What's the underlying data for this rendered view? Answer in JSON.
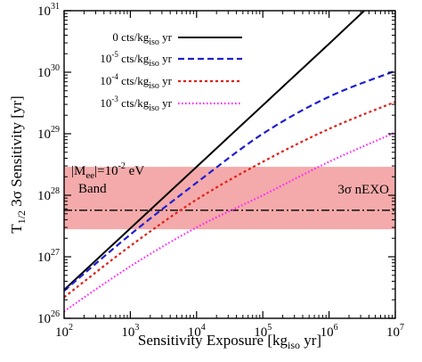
{
  "chart_data": {
    "type": "line",
    "xscale": "log",
    "yscale": "log",
    "xlim": [
      100,
      10000000
    ],
    "ylim": [
      1e+26,
      1e+31
    ],
    "xlabel": {
      "main": "Sensitivity Exposure [kg",
      "sub": "iso",
      "tail": " yr]"
    },
    "ylabel": {
      "main": "T",
      "sub": "1/2",
      "tail": " 3σ Sensitivity [yr]"
    },
    "x_ticks": [
      {
        "base": "10",
        "exp": "2",
        "value": 100
      },
      {
        "base": "10",
        "exp": "3",
        "value": 1000
      },
      {
        "base": "10",
        "exp": "4",
        "value": 10000
      },
      {
        "base": "10",
        "exp": "5",
        "value": 100000
      },
      {
        "base": "10",
        "exp": "6",
        "value": 1000000
      },
      {
        "base": "10",
        "exp": "7",
        "value": 10000000
      }
    ],
    "y_ticks": [
      {
        "base": "10",
        "exp": "26",
        "value": 1e+26
      },
      {
        "base": "10",
        "exp": "27",
        "value": 1e+27
      },
      {
        "base": "10",
        "exp": "28",
        "value": 1e+28
      },
      {
        "base": "10",
        "exp": "29",
        "value": 1e+29
      },
      {
        "base": "10",
        "exp": "30",
        "value": 1e+30
      },
      {
        "base": "10",
        "exp": "31",
        "value": 1e+31
      }
    ],
    "grid": false,
    "legend_position": "top-left",
    "series": [
      {
        "name": "0 cts/kg",
        "name_sub": "iso",
        "name_tail": " yr",
        "color": "#000000",
        "dash": "solid",
        "points": [
          [
            100,
            2.9e+26
          ],
          [
            1000,
            2.9e+27
          ],
          [
            10000,
            2.9e+28
          ],
          [
            100000,
            2.9e+29
          ],
          [
            1000000,
            2.9e+30
          ],
          [
            3400000,
            1e+31
          ]
        ]
      },
      {
        "name": "10",
        "name_exp": "-5",
        "name_mid": "  cts/kg",
        "name_sub": "iso",
        "name_tail": " yr",
        "color": "#1f1fd0",
        "dash": "dashed",
        "points": [
          [
            100,
            2.8e+26
          ],
          [
            1000,
            2.3e+27
          ],
          [
            10000,
            1.6e+28
          ],
          [
            100000,
            1e+29
          ],
          [
            1000000,
            4e+29
          ],
          [
            10000000,
            1.05e+30
          ]
        ]
      },
      {
        "name": "10",
        "name_exp": "-4",
        "name_mid": "  cts/kg",
        "name_sub": "iso",
        "name_tail": " yr",
        "color": "#e0201a",
        "dash": "dotted-dense",
        "points": [
          [
            100,
            2.2e+26
          ],
          [
            1000,
            1.5e+27
          ],
          [
            10000,
            8.5e+27
          ],
          [
            100000,
            3.5e+28
          ],
          [
            1000000,
            1.2e+29
          ],
          [
            10000000,
            3.3e+29
          ]
        ]
      },
      {
        "name": "10",
        "name_exp": "-3",
        "name_mid": "  cts/kg",
        "name_sub": "iso",
        "name_tail": " yr",
        "color": "#ff20ff",
        "dash": "dotted",
        "points": [
          [
            100,
            1.3e+26
          ],
          [
            1000,
            7e+26
          ],
          [
            10000,
            3e+27
          ],
          [
            100000,
            1e+28
          ],
          [
            1000000,
            3.5e+28
          ],
          [
            10000000,
            1.05e+29
          ]
        ]
      }
    ],
    "band": {
      "label_parts": {
        "main": "|M",
        "sub": "ee",
        "mid": "|=10",
        "exp": "-2",
        "tail": " eV"
      },
      "label_line2": "Band",
      "y_low": 2.8e+27,
      "y_high": 2.9e+28,
      "color": "#f4aaaa"
    },
    "reference_line": {
      "label": "3σ nEXO",
      "y": 5.7e+27,
      "color": "#000000",
      "dash": "dash-dot"
    }
  }
}
